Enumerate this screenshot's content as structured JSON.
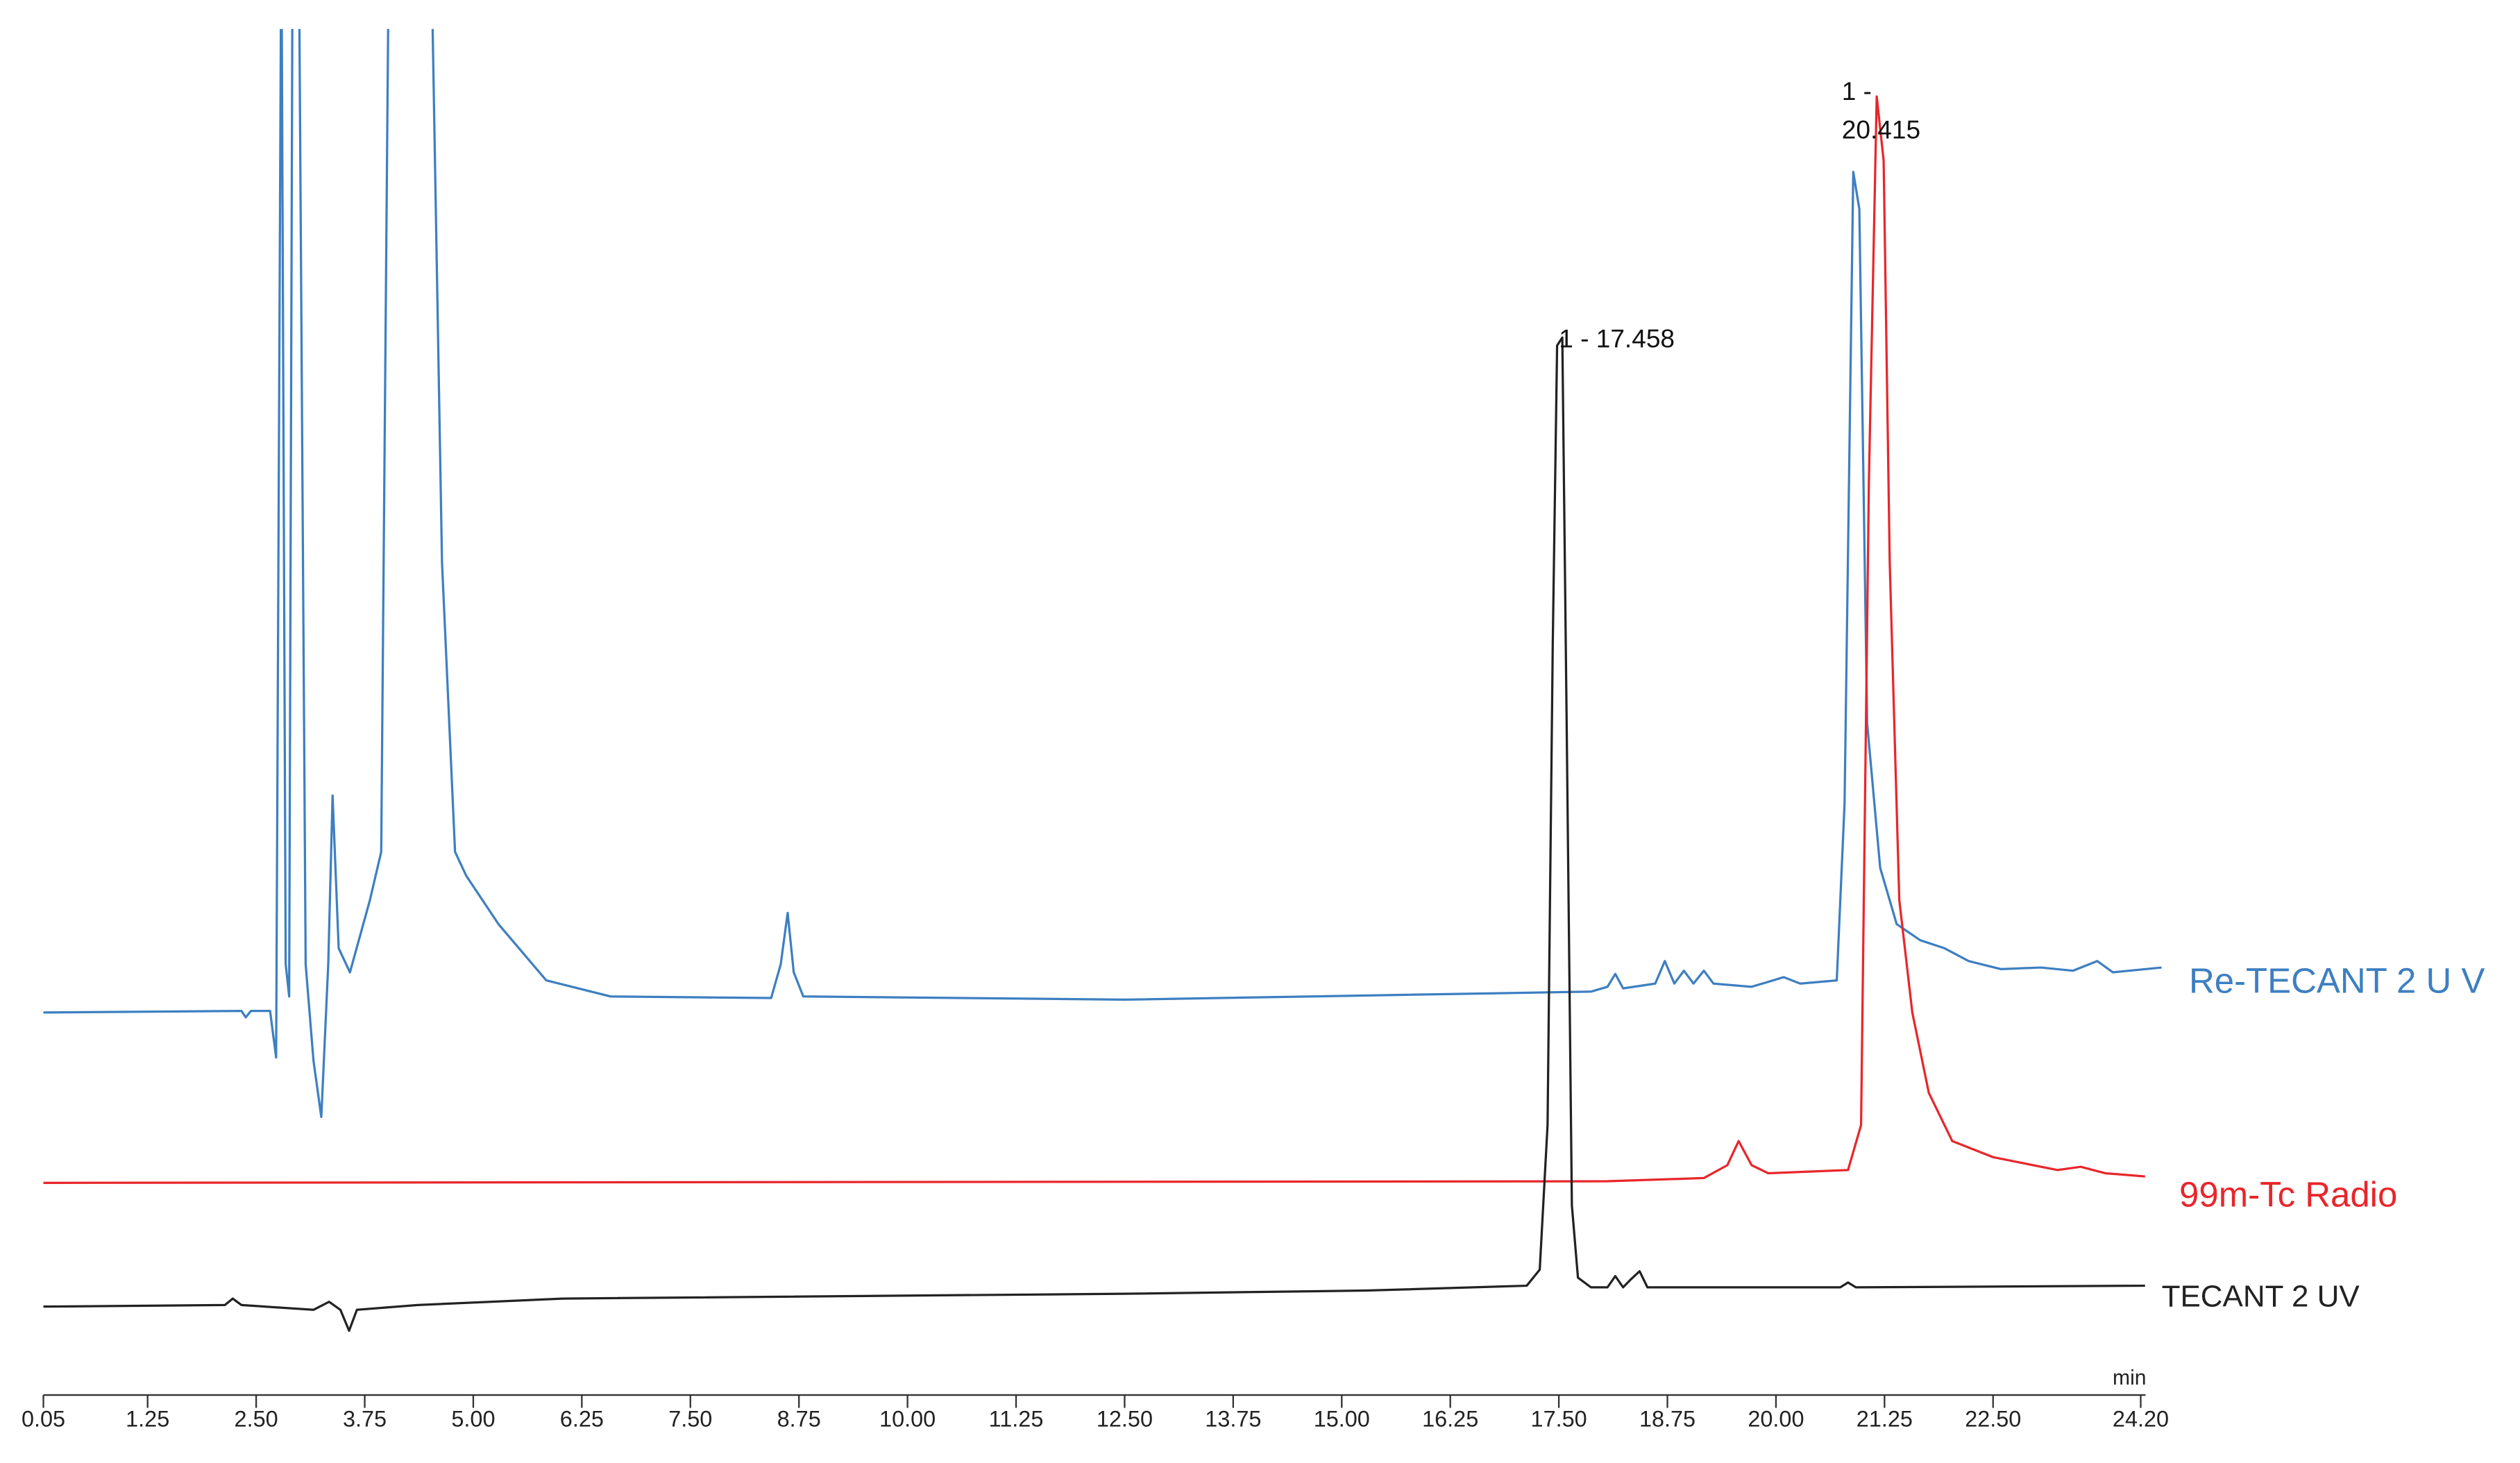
{
  "chart_data": {
    "type": "line",
    "x_label": "min",
    "xlim": [
      0.05,
      24.2
    ],
    "xticks": [
      0.05,
      1.25,
      {
        "value": 2.5,
        "label": "2.50"
      },
      3.75,
      {
        "value": 5,
        "label": "5.00"
      },
      6.25,
      {
        "value": 7.5,
        "label": "7.50"
      },
      8.75,
      {
        "value": 10,
        "label": "10.00"
      },
      11.25,
      {
        "value": 12.5,
        "label": "12.50"
      },
      13.75,
      {
        "value": 15,
        "label": "15.00"
      },
      16.25,
      {
        "value": 17.5,
        "label": "17.50"
      },
      18.75,
      {
        "value": 20,
        "label": "20.00"
      },
      21.25,
      {
        "value": 22.5,
        "label": "22.50"
      },
      {
        "value": 24.2,
        "label": "24.20"
      }
    ],
    "ylim": [
      0,
      83.2
    ],
    "series": [
      {
        "name": "Re-TECANT 2 U V",
        "color": "#3d7fc1",
        "x": [
          0.05,
          2.33,
          2.38,
          2.44,
          2.66,
          2.73,
          2.79,
          2.84,
          2.88,
          2.92,
          2.99,
          3.07,
          3.16,
          3.25,
          3.33,
          3.38,
          3.45,
          3.58,
          3.81,
          3.94,
          4.03,
          4.51,
          4.64,
          4.79,
          4.92,
          5.29,
          5.84,
          6.58,
          8.43,
          8.54,
          8.62,
          8.69,
          8.8,
          12.5,
          17.87,
          18.06,
          18.15,
          18.24,
          18.61,
          18.72,
          18.83,
          18.94,
          19.05,
          19.17,
          19.28,
          19.72,
          20.09,
          20.28,
          20.7,
          20.79,
          20.89,
          20.96,
          21.05,
          21.2,
          21.39,
          21.66,
          21.94,
          22.22,
          22.59,
          23.05,
          23.42,
          23.7,
          23.88,
          24.44
        ],
        "values": [
          22.0,
          22.1,
          21.7,
          22.1,
          22.1,
          19.2,
          90,
          25.0,
          23.0,
          90,
          90,
          25.0,
          19.0,
          15.5,
          25.0,
          35.5,
          26.0,
          24.5,
          29.0,
          32.0,
          90,
          90,
          50.0,
          32.0,
          30.5,
          27.5,
          24.0,
          23.0,
          22.9,
          25.0,
          28.2,
          24.5,
          23.0,
          22.8,
          23.3,
          23.6,
          24.4,
          23.5,
          23.8,
          25.2,
          23.8,
          24.6,
          23.8,
          24.6,
          23.8,
          23.6,
          24.2,
          23.8,
          24.0,
          35.0,
          74.3,
          72.0,
          40.0,
          31.0,
          27.5,
          26.5,
          26.0,
          25.2,
          24.7,
          24.8,
          24.6,
          25.2,
          24.5,
          24.8
        ]
      },
      {
        "name": "99m-Tc Radio",
        "color": "#e8262b",
        "x": [
          0.05,
          18.06,
          19.17,
          19.44,
          19.57,
          19.72,
          19.91,
          20.83,
          20.98,
          21.07,
          21.16,
          21.24,
          21.31,
          21.42,
          21.57,
          21.76,
          22.03,
          22.5,
          23.24,
          23.51,
          23.79,
          24.25
        ],
        "values": [
          11.4,
          11.5,
          11.7,
          12.5,
          14.0,
          12.5,
          12.0,
          12.2,
          15.0,
          55.0,
          79.0,
          75.0,
          50.0,
          29.0,
          22.0,
          17.0,
          14.0,
          13.0,
          12.2,
          12.4,
          12.0,
          11.8
        ]
      },
      {
        "name": "TECANT 2 UV",
        "color": "#222222",
        "x": [
          0.05,
          2.14,
          2.23,
          2.33,
          3.16,
          3.34,
          3.47,
          3.57,
          3.66,
          4.36,
          6.03,
          12.5,
          15.28,
          17.13,
          17.28,
          17.37,
          17.43,
          17.48,
          17.54,
          17.59,
          17.65,
          17.72,
          17.87,
          18.06,
          18.15,
          18.24,
          18.33,
          18.43,
          18.52,
          20.74,
          20.83,
          20.92,
          24.25
        ],
        "values": [
          3.7,
          3.8,
          4.2,
          3.8,
          3.5,
          4.0,
          3.5,
          2.2,
          3.5,
          3.8,
          4.2,
          4.5,
          4.7,
          5.0,
          6.0,
          15.0,
          45.0,
          63.5,
          64.0,
          40.0,
          10.0,
          5.5,
          4.9,
          4.9,
          5.6,
          4.9,
          5.4,
          5.9,
          4.9,
          4.9,
          5.2,
          4.9,
          5.0
        ]
      }
    ],
    "annotations": [
      {
        "lines": [
          "1 - 17.458"
        ]
      },
      {
        "lines": [
          "1 -",
          "20.415"
        ]
      }
    ]
  }
}
